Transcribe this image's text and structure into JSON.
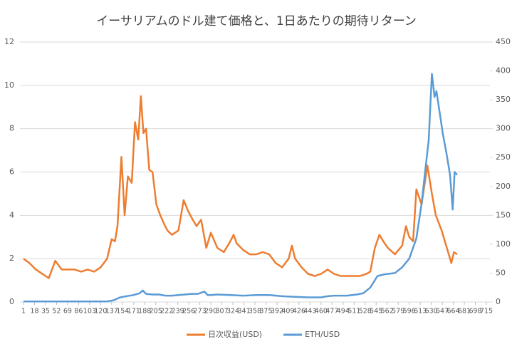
{
  "chart_data": {
    "type": "line",
    "title": "イーサリアムのドル建て価格と、1日あたりの期待リターン",
    "xlim": [
      1,
      715
    ],
    "xticks": [
      1,
      18,
      35,
      52,
      69,
      86,
      103,
      120,
      137,
      154,
      171,
      188,
      205,
      222,
      239,
      256,
      273,
      290,
      307,
      324,
      341,
      358,
      375,
      392,
      409,
      426,
      443,
      460,
      477,
      494,
      511,
      528,
      545,
      562,
      579,
      596,
      613,
      630,
      647,
      664,
      681,
      698,
      715
    ],
    "ylim": [
      0,
      12
    ],
    "yticks": [
      0,
      2,
      4,
      6,
      8,
      10,
      12
    ],
    "y2lim": [
      0,
      450
    ],
    "y2ticks": [
      0,
      50,
      100,
      150,
      200,
      250,
      300,
      350,
      400,
      450
    ],
    "grid": true,
    "legend": "bottom",
    "series": [
      {
        "name": "日次収益(USD)",
        "color": "#ed7d31",
        "x": [
          1,
          10,
          20,
          30,
          40,
          50,
          60,
          70,
          80,
          90,
          100,
          110,
          120,
          130,
          137,
          142,
          146,
          152,
          157,
          162,
          168,
          173,
          178,
          182,
          186,
          190,
          195,
          200,
          206,
          212,
          218,
          223,
          230,
          240,
          248,
          255,
          262,
          268,
          275,
          283,
          290,
          300,
          310,
          320,
          325,
          330,
          340,
          350,
          360,
          370,
          380,
          390,
          400,
          410,
          415,
          420,
          430,
          440,
          450,
          460,
          470,
          480,
          490,
          500,
          510,
          520,
          530,
          536,
          543,
          550,
          556,
          563,
          574,
          585,
          591,
          596,
          602,
          607,
          615,
          624,
          631,
          637,
          646,
          655,
          661,
          665,
          670
        ],
        "values": [
          2.0,
          1.8,
          1.5,
          1.3,
          1.1,
          1.9,
          1.5,
          1.5,
          1.5,
          1.4,
          1.5,
          1.4,
          1.6,
          2.0,
          2.9,
          2.8,
          3.5,
          6.7,
          4.0,
          5.8,
          5.5,
          8.3,
          7.5,
          9.5,
          7.8,
          8.0,
          6.1,
          6.0,
          4.5,
          4.0,
          3.6,
          3.3,
          3.1,
          3.3,
          4.7,
          4.2,
          3.8,
          3.5,
          3.8,
          2.5,
          3.2,
          2.5,
          2.3,
          2.8,
          3.1,
          2.7,
          2.4,
          2.2,
          2.2,
          2.3,
          2.2,
          1.8,
          1.6,
          2.0,
          2.6,
          2.0,
          1.6,
          1.3,
          1.2,
          1.3,
          1.5,
          1.3,
          1.2,
          1.2,
          1.2,
          1.2,
          1.3,
          1.4,
          2.5,
          3.1,
          2.8,
          2.5,
          2.2,
          2.6,
          3.5,
          3.0,
          2.8,
          5.2,
          4.5,
          6.3,
          5.0,
          4.0,
          3.3,
          2.4,
          1.8,
          2.3,
          2.2
        ]
      },
      {
        "name": "ETH/USD",
        "color": "#5b9bd5",
        "axis": "y2",
        "x": [
          1,
          100,
          130,
          140,
          150,
          160,
          170,
          180,
          185,
          190,
          200,
          210,
          220,
          230,
          240,
          250,
          260,
          270,
          280,
          285,
          290,
          300,
          320,
          340,
          360,
          380,
          400,
          420,
          440,
          460,
          470,
          480,
          500,
          515,
          525,
          536,
          547,
          558,
          574,
          585,
          596,
          607,
          615,
          621,
          626,
          631,
          635,
          638,
          644,
          648,
          653,
          659,
          663,
          666,
          670
        ],
        "values": [
          1,
          1,
          1,
          3,
          8,
          10,
          12,
          15,
          20,
          14,
          13,
          13,
          11,
          11,
          12,
          13,
          14,
          14,
          18,
          12,
          12,
          13,
          12,
          11,
          12,
          12,
          10,
          9,
          8,
          8,
          10,
          11,
          11,
          13,
          15,
          25,
          45,
          48,
          50,
          60,
          75,
          110,
          170,
          230,
          280,
          395,
          355,
          365,
          320,
          290,
          260,
          220,
          160,
          225,
          220
        ]
      }
    ]
  }
}
